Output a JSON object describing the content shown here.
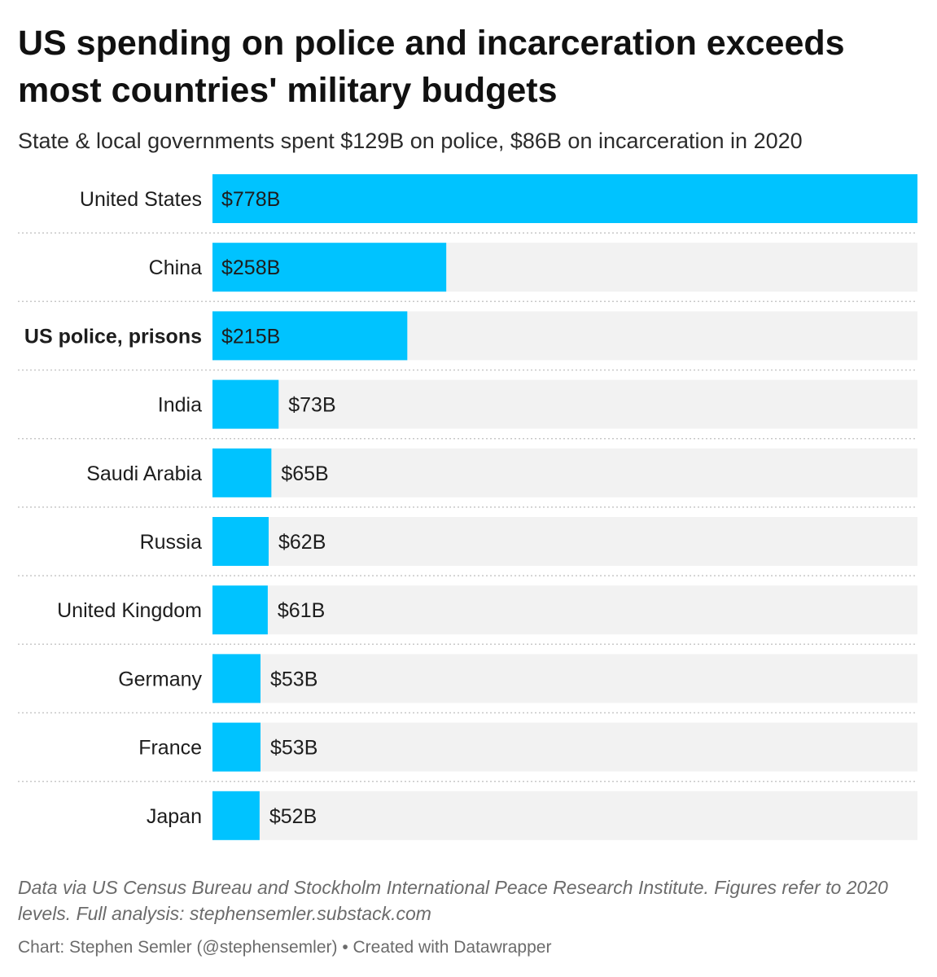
{
  "title": "US spending on police and incarceration exceeds most countries' military budgets",
  "subtitle": "State & local governments spent $129B on police, $86B on incarceration in 2020",
  "notes": "Data via US Census Bureau and Stockholm International Peace Research Institute. Figures refer to 2020 levels. Full analysis: stephensemler.substack.com",
  "byline": "Chart: Stephen Semler (@stephensemler) • Created with Datawrapper",
  "colors": {
    "bar": "#00c3ff",
    "track": "#f2f2f2",
    "divider": "#c8c8c8",
    "label": "#1d1d1d"
  },
  "chart_data": {
    "type": "bar",
    "orientation": "horizontal",
    "categories": [
      "United States",
      "China",
      "US police, prisons",
      "India",
      "Saudi Arabia",
      "Russia",
      "United Kingdom",
      "Germany",
      "France",
      "Japan"
    ],
    "values": [
      778,
      258,
      215,
      73,
      65,
      62,
      61,
      53,
      53,
      52
    ],
    "value_labels": [
      "$778B",
      "$258B",
      "$215B",
      "$73B",
      "$65B",
      "$62B",
      "$61B",
      "$53B",
      "$53B",
      "$52B"
    ],
    "highlighted_category": "US police, prisons",
    "xlim": [
      0,
      778
    ],
    "grid": false,
    "legend": "none"
  }
}
